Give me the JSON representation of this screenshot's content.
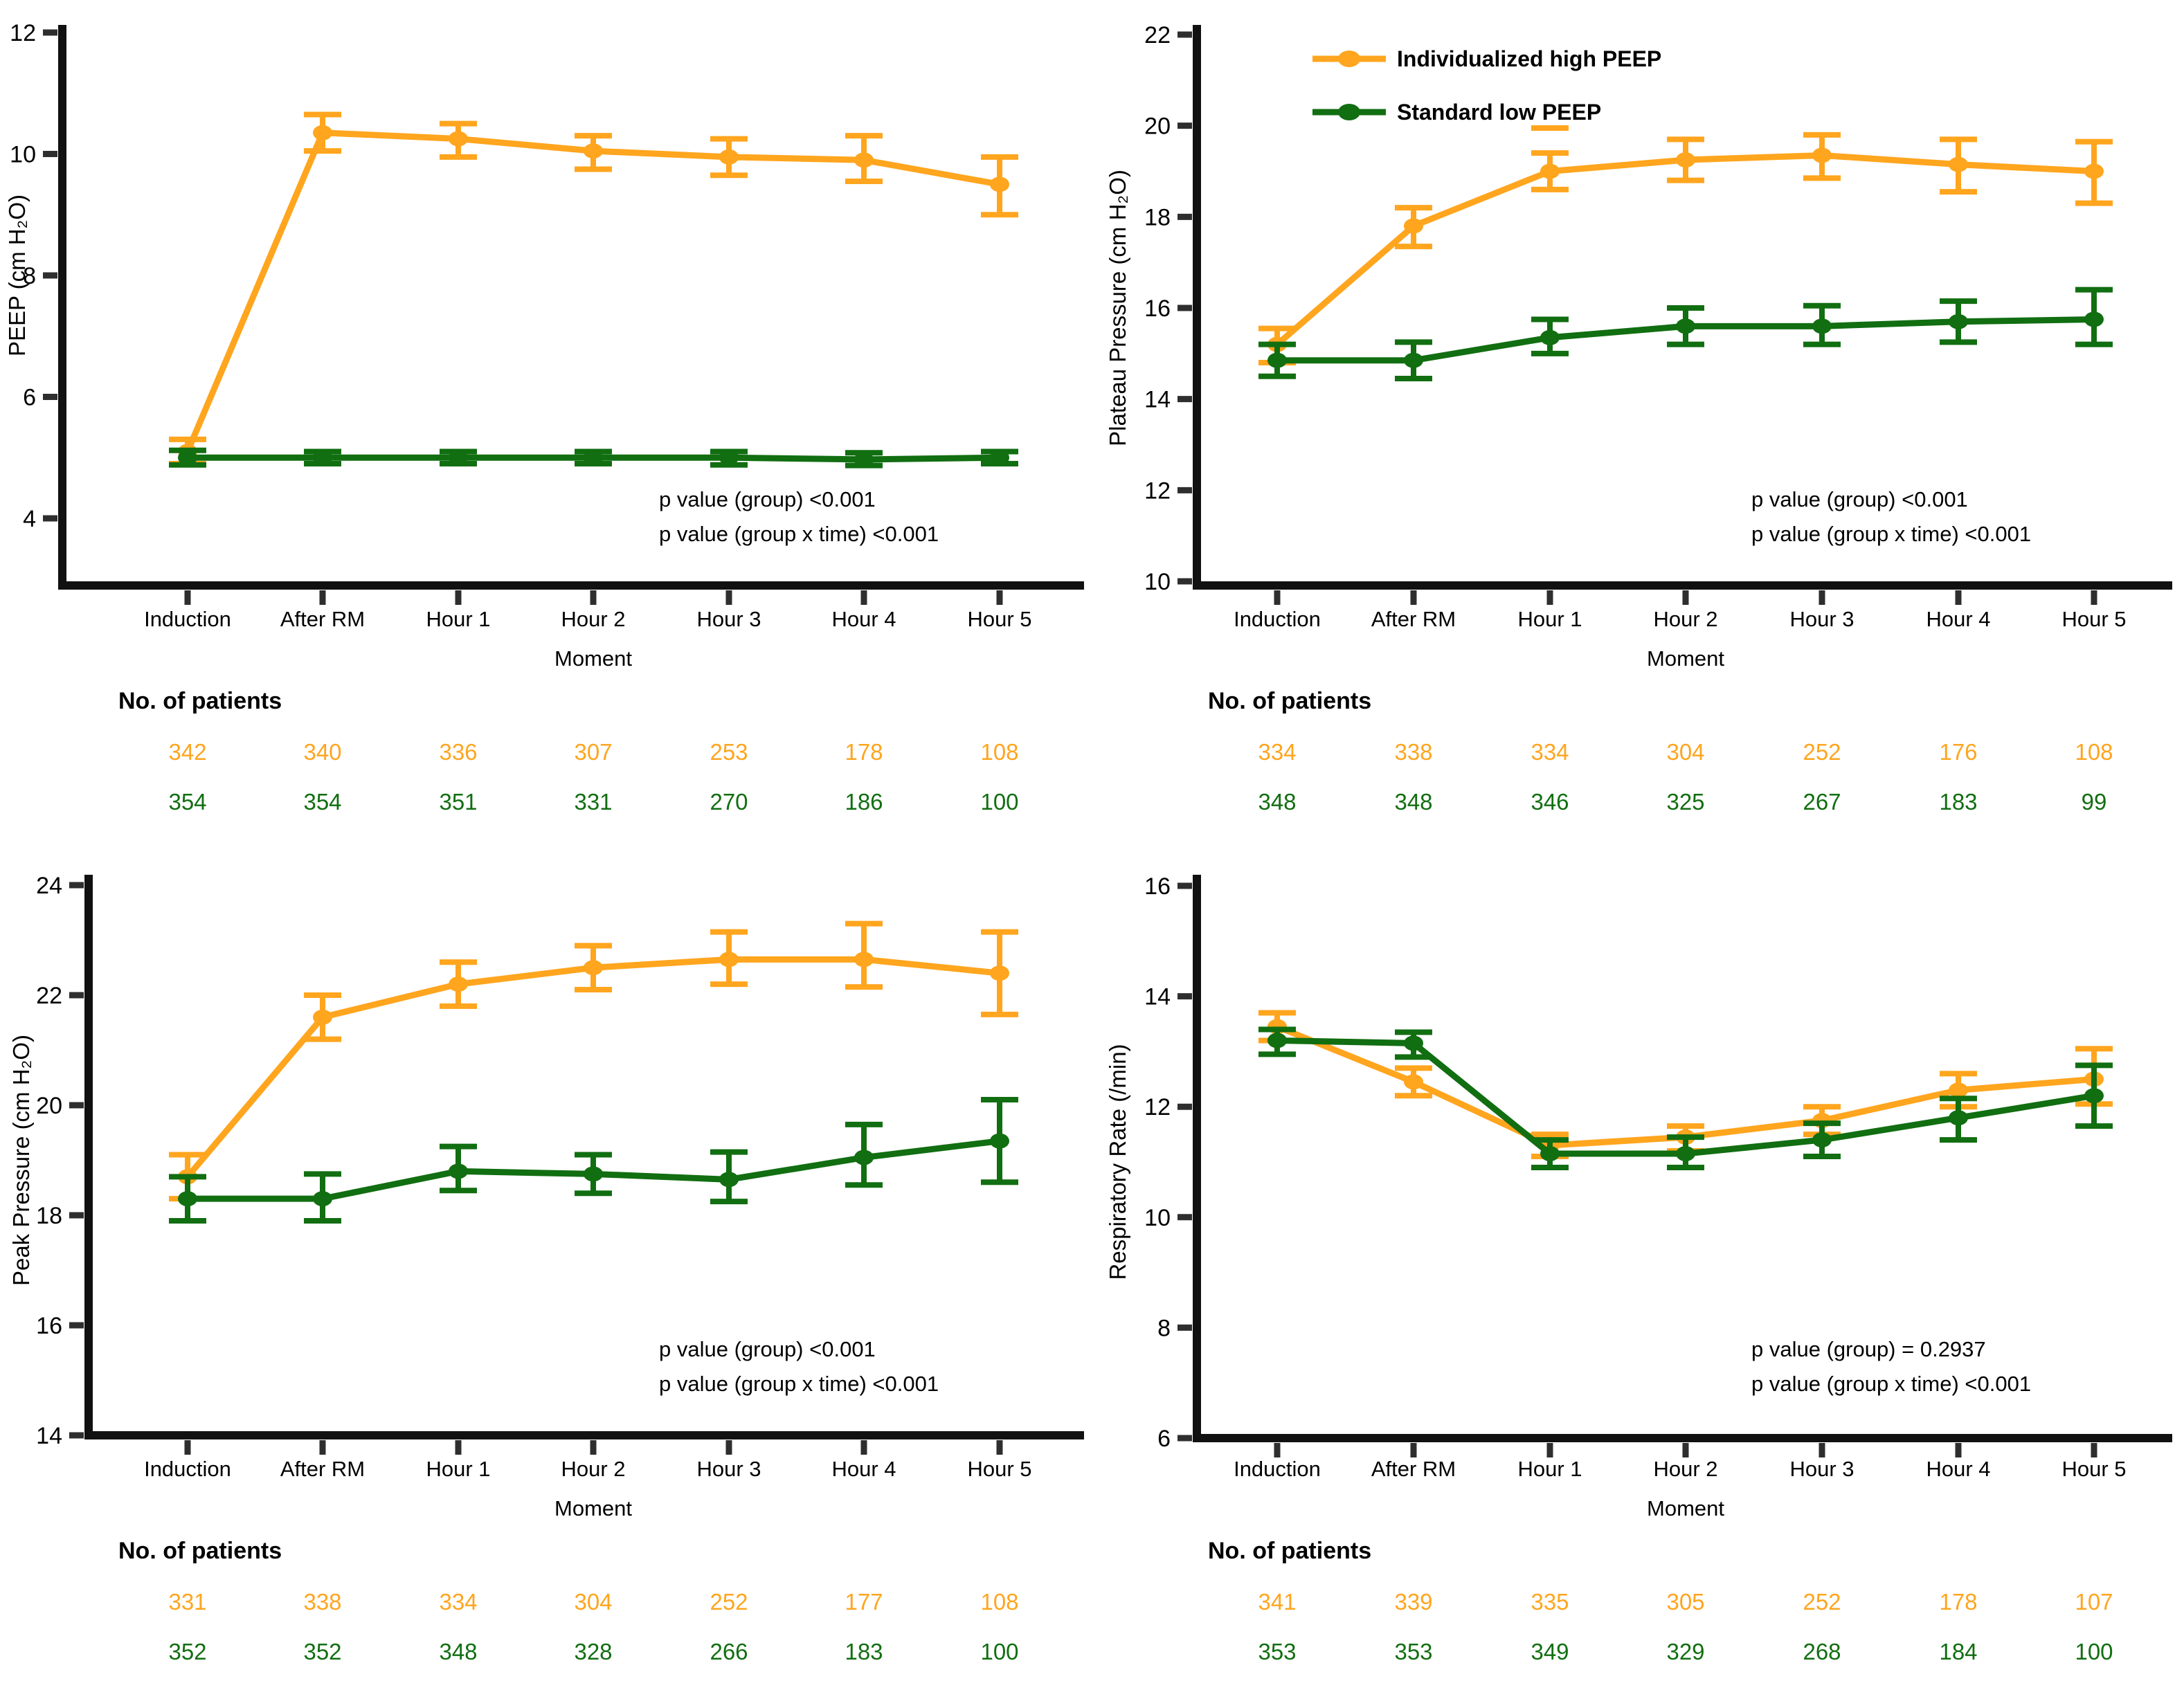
{
  "colors": {
    "high_peep_orange": "#FFA51E",
    "low_peep_green": "#116E11",
    "axis_black": "#111111",
    "tick_gray": "#2e2e2e",
    "text_black": "#000000"
  },
  "chart_data": [
    {
      "id": "peep",
      "type": "line",
      "ylabel": "PEEP (cm H₂O)",
      "xlabel": "Moment",
      "categories": [
        "Induction",
        "After RM",
        "Hour 1",
        "Hour 2",
        "Hour 3",
        "Hour 4",
        "Hour 5"
      ],
      "yticks": [
        12,
        10,
        8,
        6,
        4
      ],
      "ylim": [
        4,
        12
      ],
      "grid": false,
      "show_legend": false,
      "p_lines": [
        "p value (group) <0.001",
        "p value (group x time) <0.001"
      ],
      "patients_label": "No. of patients",
      "series": [
        {
          "name": "Individualized high PEEP",
          "color_key": "high_peep_orange",
          "values": [
            5.1,
            10.35,
            10.25,
            10.05,
            9.95,
            9.9,
            9.5
          ],
          "err_low": [
            4.9,
            10.05,
            9.95,
            9.75,
            9.65,
            9.55,
            9.0
          ],
          "err_high": [
            5.3,
            10.65,
            10.5,
            10.3,
            10.25,
            10.3,
            9.95
          ]
        },
        {
          "name": "Standard low PEEP",
          "color_key": "low_peep_green",
          "values": [
            5.0,
            5.0,
            5.0,
            5.0,
            5.0,
            4.97,
            5.0
          ],
          "err_low": [
            4.88,
            4.9,
            4.9,
            4.9,
            4.88,
            4.87,
            4.9
          ],
          "err_high": [
            5.12,
            5.1,
            5.1,
            5.1,
            5.1,
            5.08,
            5.1
          ]
        }
      ],
      "patients": [
        [
          342,
          340,
          336,
          307,
          253,
          178,
          108
        ],
        [
          354,
          354,
          351,
          331,
          270,
          186,
          100
        ]
      ]
    },
    {
      "id": "plateau-pressure",
      "type": "line",
      "ylabel": "Plateau Pressure (cm H₂O)",
      "xlabel": "Moment",
      "categories": [
        "Induction",
        "After RM",
        "Hour 1",
        "Hour 2",
        "Hour 3",
        "Hour 4",
        "Hour 5"
      ],
      "yticks": [
        22,
        20,
        18,
        16,
        14,
        12,
        10
      ],
      "ylim": [
        10,
        22
      ],
      "grid": false,
      "show_legend": true,
      "p_lines": [
        "p value (group) <0.001",
        "p value (group x time) <0.001"
      ],
      "patients_label": "No. of patients",
      "stray_cap": {
        "series": 0,
        "index": 2,
        "value": 19.95
      },
      "series": [
        {
          "name": "Individualized high PEEP",
          "color_key": "high_peep_orange",
          "values": [
            15.2,
            17.8,
            19.0,
            19.25,
            19.35,
            19.15,
            19.0
          ],
          "err_low": [
            14.8,
            17.35,
            18.6,
            18.8,
            18.85,
            18.55,
            18.3
          ],
          "err_high": [
            15.55,
            18.2,
            19.4,
            19.7,
            19.8,
            19.7,
            19.65
          ]
        },
        {
          "name": "Standard low PEEP",
          "color_key": "low_peep_green",
          "values": [
            14.85,
            14.85,
            15.35,
            15.6,
            15.6,
            15.7,
            15.75
          ],
          "err_low": [
            14.5,
            14.45,
            15.0,
            15.2,
            15.2,
            15.25,
            15.2
          ],
          "err_high": [
            15.2,
            15.25,
            15.75,
            16.0,
            16.05,
            16.15,
            16.4
          ]
        }
      ],
      "patients": [
        [
          334,
          338,
          334,
          304,
          252,
          176,
          108
        ],
        [
          348,
          348,
          346,
          325,
          267,
          183,
          99
        ]
      ]
    },
    {
      "id": "peak-pressure",
      "type": "line",
      "ylabel": "Peak Pressure  (cm H₂O)",
      "xlabel": "Moment",
      "categories": [
        "Induction",
        "After RM",
        "Hour 1",
        "Hour 2",
        "Hour 3",
        "Hour 4",
        "Hour 5"
      ],
      "yticks": [
        24,
        22,
        20,
        18,
        16,
        14
      ],
      "ylim": [
        14,
        24
      ],
      "grid": false,
      "show_legend": false,
      "p_lines": [
        "p value (group) <0.001",
        "p value (group x time) <0.001"
      ],
      "patients_label": "No. of patients",
      "series": [
        {
          "name": "Individualized high PEEP",
          "color_key": "high_peep_orange",
          "values": [
            18.7,
            21.6,
            22.2,
            22.5,
            22.65,
            22.65,
            22.4
          ],
          "err_low": [
            18.3,
            21.2,
            21.8,
            22.1,
            22.2,
            22.15,
            21.65
          ],
          "err_high": [
            19.1,
            22.0,
            22.6,
            22.9,
            23.15,
            23.3,
            23.15
          ]
        },
        {
          "name": "Standard low PEEP",
          "color_key": "low_peep_green",
          "values": [
            18.3,
            18.3,
            18.8,
            18.75,
            18.65,
            19.05,
            19.35
          ],
          "err_low": [
            17.9,
            17.9,
            18.45,
            18.4,
            18.25,
            18.55,
            18.6
          ],
          "err_high": [
            18.7,
            18.75,
            19.25,
            19.1,
            19.15,
            19.65,
            20.1
          ]
        }
      ],
      "patients": [
        [
          331,
          338,
          334,
          304,
          252,
          177,
          108
        ],
        [
          352,
          352,
          348,
          328,
          266,
          183,
          100
        ]
      ]
    },
    {
      "id": "respiratory-rate",
      "type": "line",
      "ylabel": "Respiratory Rate  (/min)",
      "xlabel": "Moment",
      "categories": [
        "Induction",
        "After RM",
        "Hour 1",
        "Hour 2",
        "Hour 3",
        "Hour 4",
        "Hour 5"
      ],
      "yticks": [
        16,
        14,
        12,
        10,
        8,
        6
      ],
      "ylim": [
        6,
        16
      ],
      "grid": false,
      "show_legend": false,
      "p_lines": [
        "p value (group) = 0.2937",
        "p value (group x time) <0.001"
      ],
      "patients_label": "No. of patients",
      "series": [
        {
          "name": "Individualized high PEEP",
          "color_key": "high_peep_orange",
          "values": [
            13.45,
            12.45,
            11.3,
            11.45,
            11.75,
            12.3,
            12.5
          ],
          "err_low": [
            13.2,
            12.2,
            11.1,
            11.2,
            11.5,
            12.0,
            12.05
          ],
          "err_high": [
            13.7,
            12.7,
            11.5,
            11.65,
            12.0,
            12.6,
            13.05
          ]
        },
        {
          "name": "Standard low PEEP",
          "color_key": "low_peep_green",
          "values": [
            13.2,
            13.15,
            11.15,
            11.15,
            11.4,
            11.8,
            12.2
          ],
          "err_low": [
            12.95,
            12.9,
            10.9,
            10.9,
            11.1,
            11.4,
            11.65
          ],
          "err_high": [
            13.4,
            13.35,
            11.4,
            11.45,
            11.7,
            12.15,
            12.75
          ]
        }
      ],
      "patients": [
        [
          341,
          339,
          335,
          305,
          252,
          178,
          107
        ],
        [
          353,
          353,
          349,
          329,
          268,
          184,
          100
        ]
      ]
    }
  ]
}
